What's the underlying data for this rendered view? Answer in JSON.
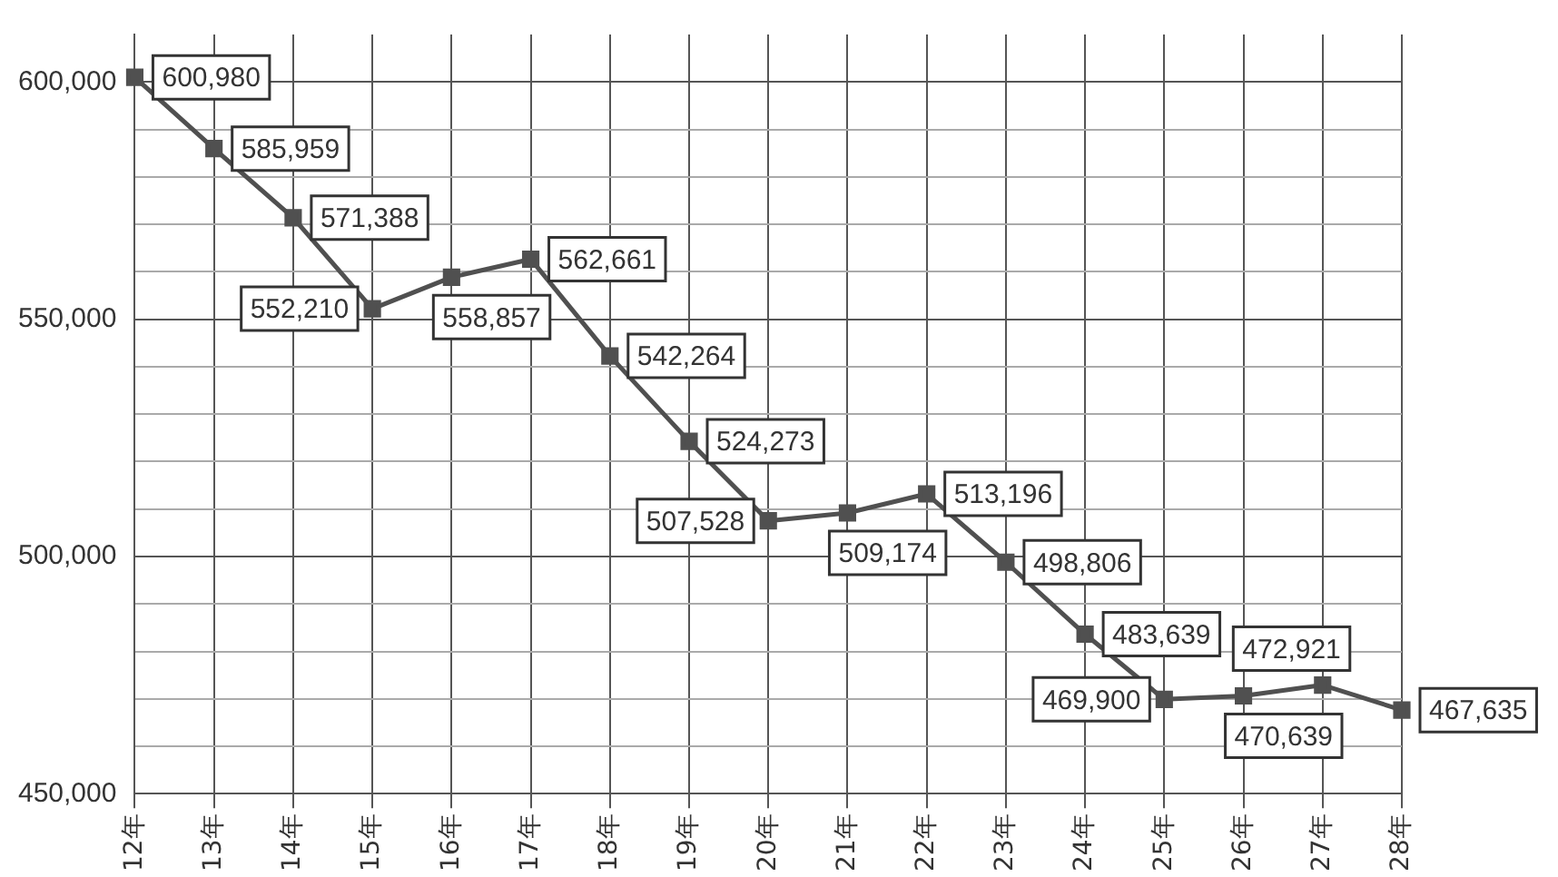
{
  "chart_data": {
    "type": "line",
    "categories": [
      "12年",
      "13年",
      "14年",
      "15年",
      "16年",
      "17年",
      "18年",
      "19年",
      "20年",
      "21年",
      "22年",
      "23年",
      "24年",
      "25年",
      "26年",
      "27年",
      "28年"
    ],
    "series": [
      {
        "color": "#505050",
        "values": [
          600980,
          585959,
          571388,
          552210,
          558857,
          562661,
          542264,
          524273,
          507528,
          509174,
          513196,
          498806,
          483639,
          469900,
          470639,
          472921,
          467635
        ]
      }
    ],
    "ylim": [
      450000,
      610000
    ],
    "yticks": [
      {
        "value": 450000,
        "label": "450,000"
      },
      {
        "value": 460000,
        "label": null
      },
      {
        "value": 470000,
        "label": null
      },
      {
        "value": 480000,
        "label": null
      },
      {
        "value": 490000,
        "label": null
      },
      {
        "value": 500000,
        "label": "500,000"
      },
      {
        "value": 510000,
        "label": null
      },
      {
        "value": 520000,
        "label": null
      },
      {
        "value": 530000,
        "label": null
      },
      {
        "value": 540000,
        "label": null
      },
      {
        "value": 550000,
        "label": "550,000"
      },
      {
        "value": 560000,
        "label": null
      },
      {
        "value": 570000,
        "label": null
      },
      {
        "value": 580000,
        "label": null
      },
      {
        "value": 590000,
        "label": null
      },
      {
        "value": 600000,
        "label": "600,000"
      }
    ],
    "value_labels": [
      "600,980",
      "585,959",
      "571,388",
      "552,210",
      "558,857",
      "562,661",
      "542,264",
      "524,273",
      "507,528",
      "509,174",
      "513,196",
      "498,806",
      "483,639",
      "469,900",
      "470,639",
      "472,921",
      "467,635"
    ],
    "grid": true,
    "legend": false,
    "marker": "square",
    "line_style": "solid"
  }
}
